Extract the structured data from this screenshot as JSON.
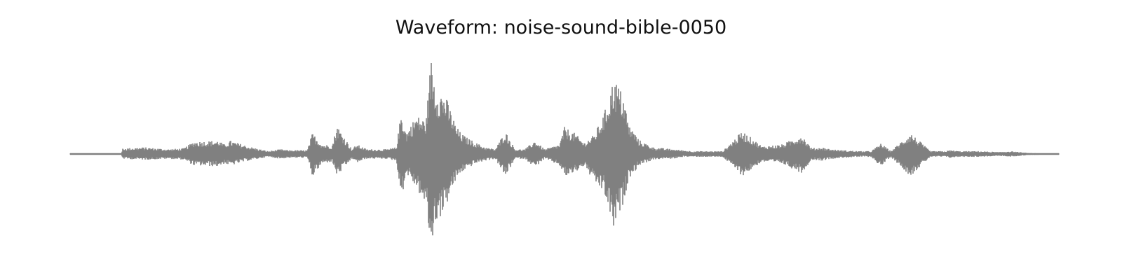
{
  "chart_data": {
    "type": "line",
    "title": "Waveform: noise-sound-bible-0050",
    "xlabel": "",
    "ylabel": "",
    "axes_visible": false,
    "grid": false,
    "legend": "none",
    "ylim": [
      -1.0,
      1.0
    ],
    "xlim": [
      0,
      1
    ],
    "color": "#808080",
    "envelope_note_x": "normalized time (0 = start, 1 = end of clip)",
    "series": [
      {
        "kind": "amplitude-envelope",
        "x": [
          0.0,
          0.052,
          0.053,
          0.075,
          0.1,
          0.115,
          0.125,
          0.15,
          0.156,
          0.162,
          0.18,
          0.2,
          0.213,
          0.22,
          0.24,
          0.245,
          0.255,
          0.265,
          0.27,
          0.285,
          0.29,
          0.3,
          0.32,
          0.33,
          0.335,
          0.34,
          0.35,
          0.36,
          0.365,
          0.37,
          0.375,
          0.38,
          0.385,
          0.39,
          0.395,
          0.4,
          0.41,
          0.42,
          0.43,
          0.44,
          0.45,
          0.46,
          0.47,
          0.48,
          0.495,
          0.5,
          0.51,
          0.52,
          0.53,
          0.54,
          0.55,
          0.56,
          0.565,
          0.57,
          0.575,
          0.58,
          0.59,
          0.6,
          0.61,
          0.62,
          0.63,
          0.64,
          0.66,
          0.68,
          0.7,
          0.72,
          0.74,
          0.75,
          0.76,
          0.77,
          0.78,
          0.8,
          0.81,
          0.82,
          0.83,
          0.85,
          0.87,
          0.88,
          0.885,
          0.89,
          0.9,
          0.92,
          0.94,
          0.95,
          0.97,
          0.99,
          1.0
        ],
        "upper": [
          0.005,
          0.005,
          0.06,
          0.07,
          0.05,
          0.06,
          0.13,
          0.14,
          0.1,
          0.14,
          0.08,
          0.03,
          0.05,
          0.04,
          0.04,
          0.22,
          0.1,
          0.09,
          0.3,
          0.05,
          0.1,
          0.05,
          0.05,
          0.07,
          0.45,
          0.22,
          0.4,
          0.35,
          1.0,
          0.7,
          0.65,
          0.6,
          0.45,
          0.3,
          0.22,
          0.18,
          0.12,
          0.07,
          0.05,
          0.24,
          0.05,
          0.05,
          0.14,
          0.05,
          0.1,
          0.28,
          0.22,
          0.12,
          0.2,
          0.42,
          0.8,
          0.6,
          0.3,
          0.24,
          0.15,
          0.12,
          0.07,
          0.06,
          0.05,
          0.04,
          0.03,
          0.03,
          0.03,
          0.24,
          0.08,
          0.1,
          0.2,
          0.06,
          0.07,
          0.05,
          0.04,
          0.03,
          0.03,
          0.11,
          0.03,
          0.22,
          0.03,
          0.03,
          0.03,
          0.04,
          0.03,
          0.03,
          0.02,
          0.03,
          0.01,
          0.005,
          0.005
        ],
        "lower": [
          -0.005,
          -0.005,
          -0.05,
          -0.06,
          -0.05,
          -0.06,
          -0.12,
          -0.13,
          -0.1,
          -0.12,
          -0.07,
          -0.03,
          -0.05,
          -0.04,
          -0.04,
          -0.24,
          -0.1,
          -0.08,
          -0.23,
          -0.05,
          -0.09,
          -0.05,
          -0.05,
          -0.07,
          -0.47,
          -0.2,
          -0.35,
          -0.55,
          -1.0,
          -0.7,
          -0.65,
          -0.55,
          -0.4,
          -0.28,
          -0.2,
          -0.16,
          -0.1,
          -0.07,
          -0.05,
          -0.24,
          -0.05,
          -0.05,
          -0.14,
          -0.05,
          -0.12,
          -0.24,
          -0.2,
          -0.12,
          -0.3,
          -0.4,
          -0.8,
          -0.5,
          -0.25,
          -0.2,
          -0.12,
          -0.1,
          -0.06,
          -0.05,
          -0.05,
          -0.03,
          -0.03,
          -0.03,
          -0.03,
          -0.23,
          -0.08,
          -0.1,
          -0.2,
          -0.06,
          -0.07,
          -0.05,
          -0.04,
          -0.03,
          -0.03,
          -0.13,
          -0.03,
          -0.23,
          -0.03,
          -0.03,
          -0.03,
          -0.04,
          -0.03,
          -0.03,
          -0.02,
          -0.03,
          -0.01,
          -0.005,
          -0.005
        ]
      }
    ]
  }
}
